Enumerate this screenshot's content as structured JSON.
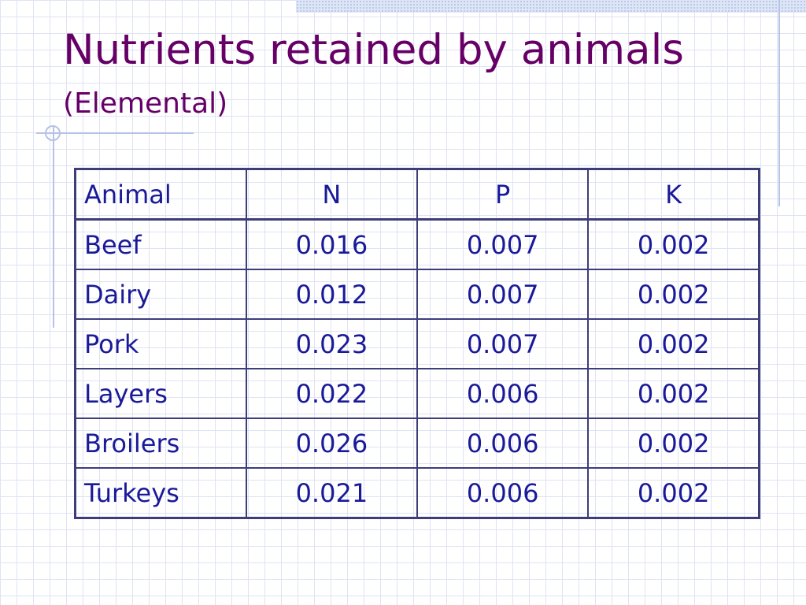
{
  "slide": {
    "title": "Nutrients retained by animals",
    "subtitle": "(Elemental)"
  },
  "table": {
    "headers": [
      "Animal",
      "N",
      "P",
      "K"
    ],
    "rows": [
      [
        "Beef",
        "0.016",
        "0.007",
        "0.002"
      ],
      [
        "Dairy",
        "0.012",
        "0.007",
        "0.002"
      ],
      [
        "Pork",
        "0.023",
        "0.007",
        "0.002"
      ],
      [
        "Layers",
        "0.022",
        "0.006",
        "0.002"
      ],
      [
        "Broilers",
        "0.026",
        "0.006",
        "0.002"
      ],
      [
        "Turkeys",
        "0.021",
        "0.006",
        "0.002"
      ]
    ]
  },
  "colors": {
    "title": "#660066",
    "table_text": "#1a1a99",
    "table_border": "#3d3d7a"
  }
}
